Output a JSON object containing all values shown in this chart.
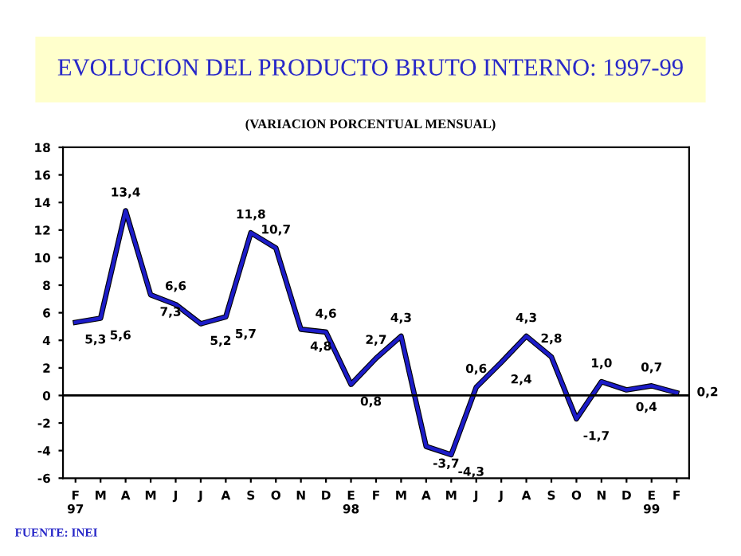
{
  "chart_data": {
    "type": "line",
    "title": "EVOLUCION DEL PRODUCTO BRUTO INTERNO: 1997-99",
    "subtitle": "(VARIACION PORCENTUAL MENSUAL)",
    "categories": [
      "F\n97",
      "M",
      "A",
      "M",
      "J",
      "J",
      "A",
      "S",
      "O",
      "N",
      "D",
      "E\n98",
      "F",
      "M",
      "A",
      "M",
      "J",
      "J",
      "A",
      "S",
      "O",
      "N",
      "D",
      "E\n99",
      "F"
    ],
    "series": [
      {
        "color": "#1c1cc8",
        "values": [
          5.3,
          5.6,
          13.4,
          7.3,
          6.6,
          5.2,
          5.7,
          11.8,
          10.7,
          4.8,
          4.6,
          0.8,
          2.7,
          4.3,
          -3.7,
          -4.3,
          0.6,
          2.4,
          4.3,
          2.8,
          -1.7,
          1.0,
          0.4,
          0.7,
          0.2
        ]
      }
    ],
    "value_labels": [
      "5,3",
      "5,6",
      "13,4",
      "7,3",
      "6,6",
      "5,2",
      "5,7",
      "11,8",
      "10,7",
      "4,8",
      "4,6",
      "0,8",
      "2,7",
      "4,3",
      "-3,7",
      "-4,3",
      "0,6",
      "2,4",
      "4,3",
      "2,8",
      "-1,7",
      "1,0",
      "0,4",
      "0,7",
      "0,2"
    ],
    "ylim": [
      -6,
      18
    ],
    "yticks": [
      -6,
      -4,
      -2,
      0,
      2,
      4,
      6,
      8,
      10,
      12,
      14,
      16,
      18
    ],
    "ref_lines": [
      {
        "axis": "y",
        "value": 0,
        "color": "#000000"
      }
    ],
    "annotations": [
      "FUENTE: INEI"
    ],
    "grid": false,
    "legend": false,
    "marker": "none",
    "line_style": "solid"
  }
}
